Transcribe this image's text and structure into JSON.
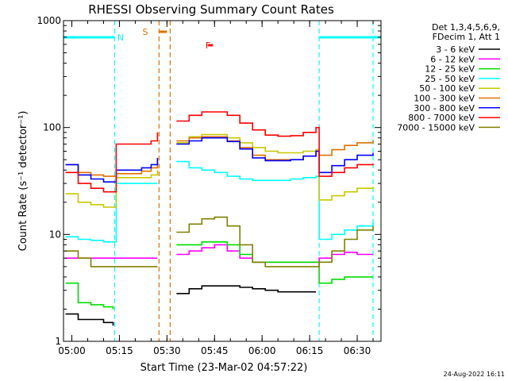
{
  "chart_data": {
    "type": "line",
    "title": "RHESSI Observing Summary Count Rates",
    "xlabel": "Start Time (23-Mar-02 04:57:22)",
    "ylabel": "Count Rate (s⁻¹ detector⁻¹)",
    "yscale": "log",
    "ylim": [
      1,
      1000
    ],
    "xlim": [
      "04:57:22",
      "06:37:30"
    ],
    "xticks": [
      "05:00",
      "05:15",
      "05:30",
      "05:45",
      "06:00",
      "06:15",
      "06:30"
    ],
    "yticks": [
      "1",
      "10",
      "100",
      "1000"
    ],
    "grid": false,
    "legend_position": "top-right",
    "legend_header": [
      "Det 1,3,4,5,6,9,",
      "FDecim 1, Att 1"
    ],
    "footer_date": "24-Aug-2022 16:11",
    "x": [
      "04:58",
      "05:02",
      "05:06",
      "05:10",
      "05:13",
      "05:14",
      "05:18",
      "05:22",
      "05:25",
      "05:27",
      "05:31",
      "05:33",
      "05:37",
      "05:41",
      "05:45",
      "05:49",
      "05:53",
      "05:57",
      "06:01",
      "06:05",
      "06:09",
      "06:13",
      "06:17",
      "06:18",
      "06:22",
      "06:26",
      "06:30",
      "06:35"
    ],
    "gaps_after": [
      "05:27",
      "06:17"
    ],
    "series": [
      {
        "name": "3 - 6 keV",
        "color": "#000000",
        "values": [
          1.8,
          1.6,
          1.6,
          1.5,
          1.4,
          null,
          null,
          null,
          null,
          null,
          null,
          2.8,
          3.1,
          3.3,
          3.3,
          3.3,
          3.2,
          3.1,
          3.0,
          2.9,
          2.9,
          2.9,
          2.9,
          null,
          null,
          null,
          null,
          null
        ]
      },
      {
        "name": "6 - 12 keV",
        "color": "#ff00ff",
        "values": [
          6,
          6,
          6,
          6,
          6,
          6,
          6,
          6,
          6,
          6,
          null,
          6.5,
          7,
          7.5,
          8,
          7,
          6,
          5.5,
          5.5,
          5.5,
          5.5,
          5.5,
          5.5,
          6,
          6.5,
          6.8,
          6.5,
          6.5
        ]
      },
      {
        "name": "12 - 25 keV",
        "color": "#00dd00",
        "values": [
          3.5,
          2.3,
          2.2,
          2.1,
          2.0,
          null,
          null,
          null,
          null,
          null,
          null,
          8,
          8,
          8.5,
          8.5,
          8,
          6.5,
          5.5,
          5.5,
          5.5,
          5.5,
          5.5,
          5.5,
          3.5,
          3.8,
          4,
          4,
          4
        ]
      },
      {
        "name": "25 - 50 keV",
        "color": "#00ffff",
        "values": [
          9.5,
          9,
          8.8,
          8.5,
          8.5,
          30,
          30,
          30,
          30,
          30,
          null,
          48,
          42,
          40,
          38,
          35,
          33,
          32,
          32,
          32,
          33,
          34,
          35,
          9,
          10,
          11,
          12,
          13
        ]
      },
      {
        "name": "50 - 100 keV",
        "color": "#c8c800",
        "values": [
          24,
          20,
          19,
          18,
          18,
          34,
          34,
          34,
          36,
          40,
          null,
          72,
          82,
          86,
          86,
          80,
          72,
          65,
          60,
          58,
          58,
          60,
          62,
          21,
          23,
          25,
          27,
          28
        ]
      },
      {
        "name": "100 - 300 keV",
        "color": "#e07000",
        "values": [
          45,
          38,
          36,
          35,
          35,
          37,
          37,
          39,
          42,
          50,
          null,
          75,
          80,
          82,
          82,
          75,
          65,
          55,
          50,
          50,
          50,
          54,
          60,
          55,
          62,
          68,
          72,
          76
        ]
      },
      {
        "name": "300 - 800 keV",
        "color": "#0000ff",
        "values": [
          45,
          36,
          33,
          31,
          31,
          40,
          40,
          42,
          45,
          52,
          null,
          70,
          75,
          80,
          80,
          74,
          63,
          52,
          49,
          49,
          50,
          54,
          60,
          38,
          44,
          50,
          55,
          58
        ]
      },
      {
        "name": "800 - 7000 keV",
        "color": "#ff0000",
        "values": [
          38,
          30,
          27,
          25,
          25,
          70,
          70,
          70,
          75,
          90,
          null,
          115,
          130,
          140,
          140,
          130,
          110,
          95,
          85,
          83,
          84,
          90,
          100,
          35,
          38,
          42,
          45,
          46
        ]
      },
      {
        "name": "7000 - 15000 keV",
        "color": "#808000",
        "values": [
          7,
          6,
          5,
          5,
          5,
          5,
          5,
          5,
          5,
          5,
          null,
          10.5,
          12.5,
          14,
          14.5,
          12,
          8,
          5.5,
          5,
          5,
          5,
          5,
          5,
          5.5,
          7,
          9,
          11,
          12
        ]
      }
    ],
    "annotations": [
      {
        "label": "N",
        "color": "#00ffff",
        "segments": [
          [
            "04:57:22",
            "05:13:30"
          ],
          [
            "06:18:00",
            "06:37:30"
          ]
        ],
        "vlines": [
          "05:13:30",
          "06:18:00",
          "06:35:00"
        ]
      },
      {
        "label": "S",
        "color": "#e07000",
        "segments": [
          [
            "05:27:30",
            "05:30:00"
          ]
        ],
        "vlines": [
          "05:27:30",
          "05:31:00"
        ]
      },
      {
        "label": "F",
        "color": "#ff0000",
        "segments": [
          [
            "05:43:00",
            "05:44:30"
          ]
        ],
        "vlines": []
      }
    ]
  }
}
